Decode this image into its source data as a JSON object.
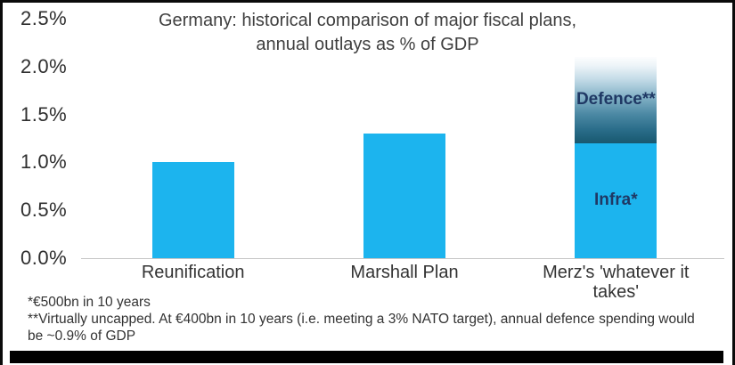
{
  "chart_data": {
    "type": "bar",
    "stacked": true,
    "title": "Germany: historical comparison of major fiscal plans, annual outlays as % of GDP",
    "categories": [
      "Reunification",
      "Marshall Plan",
      "Merz's 'whatever it takes'"
    ],
    "series": [
      {
        "name": "Infra*",
        "values": [
          1.0,
          1.3,
          1.2
        ]
      },
      {
        "name": "Defence**",
        "values": [
          0,
          0,
          0.9
        ]
      }
    ],
    "segment_labels": {
      "infra": "Infra*",
      "defence": "Defence**"
    },
    "ylim": [
      0,
      2.5
    ],
    "yticks": [
      "0.0%",
      "0.5%",
      "1.0%",
      "1.5%",
      "2.0%",
      "2.5%"
    ],
    "grid": false,
    "legend_position": "none",
    "annotations": [
      {
        "text": "Defence**",
        "target": "defence segment of Merz bar, gradient fading upward to indicate virtually uncapped spending (top ~2.1%)"
      },
      {
        "text": "Infra*",
        "target": "infra segment of Merz bar (~1.2% of GDP)"
      }
    ],
    "notes": [
      "*€500bn in 10 years",
      "**Virtually uncapped. At €400bn in 10 years (i.e. meeting a 3% NATO target), annual defence spending would be ~0.9% of GDP"
    ],
    "colors": {
      "bar": "#1cb4ee",
      "defence_gradient_bottom": "#18586f",
      "defence_gradient_top": "#fcfdfe",
      "segment_label_text": "#1f3864",
      "axis_text": "#2e2e2e",
      "title_text": "#3f3f3f"
    }
  }
}
